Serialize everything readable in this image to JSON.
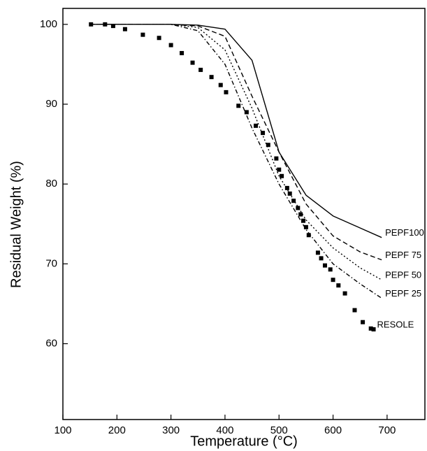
{
  "chart_data": {
    "type": "line",
    "xlabel": "Temperature (°C)",
    "ylabel": "Residual Weight (%)",
    "xlim": [
      100,
      770
    ],
    "ylim": [
      50.5,
      102
    ],
    "xticks": [
      100,
      200,
      300,
      400,
      500,
      600,
      700
    ],
    "yticks": [
      60,
      70,
      80,
      90,
      100
    ],
    "x": [
      150,
      200,
      250,
      300,
      350,
      400,
      450,
      500,
      550,
      600,
      650,
      690
    ],
    "series": [
      {
        "name": "PEPF100",
        "color": "#000000",
        "dash": "solid",
        "values": [
          100,
          100,
          100,
          100,
          99.9,
          99.4,
          95.5,
          84,
          78.6,
          76,
          74.5,
          73.3
        ]
      },
      {
        "name": "PEPF 75",
        "color": "#000000",
        "dash": "dashed",
        "values": [
          100,
          100,
          100,
          100,
          99.8,
          98.5,
          91,
          84,
          77.5,
          73.5,
          71.5,
          70.5
        ]
      },
      {
        "name": "PEPF 50",
        "color": "#000000",
        "dash": "dotted",
        "values": [
          100,
          100,
          100,
          100,
          99.6,
          96.8,
          89.5,
          81,
          75.5,
          72,
          69.5,
          68
        ]
      },
      {
        "name": "PEPF 25",
        "color": "#000000",
        "dash": "dashdot",
        "values": [
          100,
          100,
          100,
          100,
          99.2,
          95,
          87,
          80,
          74.3,
          70,
          67.5,
          65.7
        ]
      },
      {
        "name": "RESOLE",
        "color": "#000000",
        "marker": "square",
        "x": [
          152,
          178,
          193,
          215,
          248,
          278,
          300,
          320,
          340,
          355,
          375,
          392,
          402,
          425,
          440,
          457,
          470,
          480,
          495,
          500,
          505,
          515,
          520,
          527,
          535,
          540,
          545,
          550,
          555,
          572,
          578,
          585,
          595,
          600,
          610,
          622,
          640,
          655,
          670,
          675
        ],
        "values": [
          100,
          100,
          99.8,
          99.4,
          98.7,
          98.3,
          97.4,
          96.4,
          95.2,
          94.3,
          93.4,
          92.4,
          91.5,
          89.8,
          89,
          87.3,
          86.4,
          84.9,
          83.2,
          81.8,
          81,
          79.5,
          78.8,
          77.9,
          77,
          76.2,
          75.4,
          74.6,
          73.6,
          71.4,
          70.7,
          69.8,
          69.3,
          68,
          67.3,
          66.3,
          64.2,
          62.7,
          61.9,
          61.8
        ]
      }
    ]
  }
}
